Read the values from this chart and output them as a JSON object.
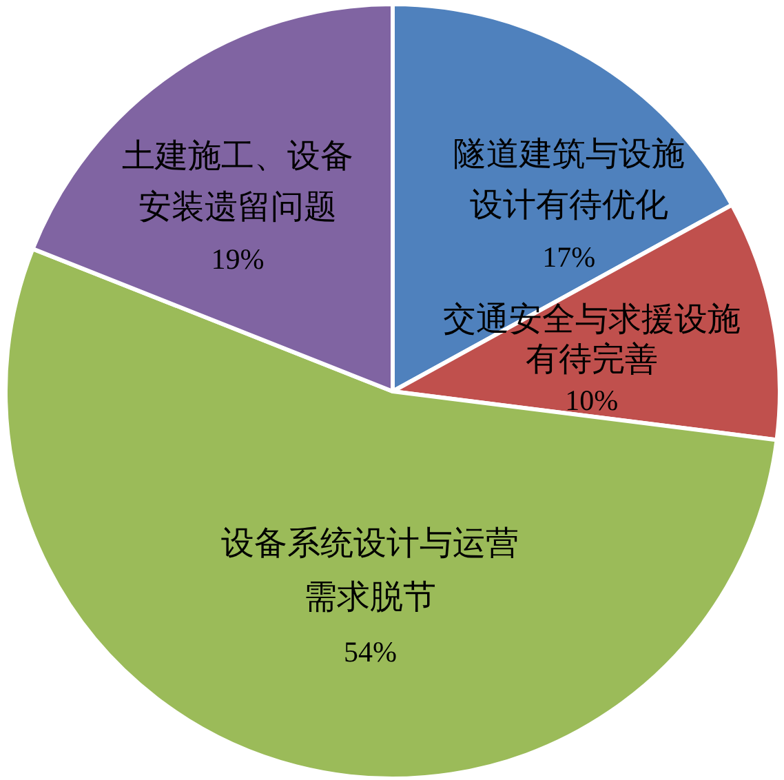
{
  "chart_data": {
    "type": "pie",
    "categories": [
      "隧道建筑与设施设计有待优化",
      "交通安全与求援设施有待完善",
      "设备系统设计与运营需求脱节",
      "土建施工、设备安装遗留问题"
    ],
    "values": [
      17,
      10,
      54,
      19
    ],
    "colors": [
      "#4f81bd",
      "#c0504d",
      "#9bbb59",
      "#8064a2"
    ],
    "value_labels": [
      "17%",
      "10%",
      "54%",
      "19%"
    ]
  }
}
